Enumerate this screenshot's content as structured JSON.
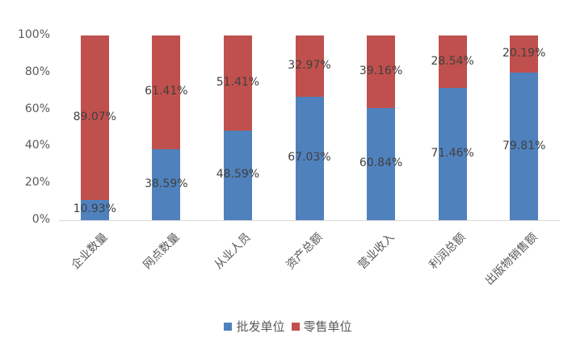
{
  "chart_data": {
    "type": "bar",
    "stacked": true,
    "percent_stacked": true,
    "title": "",
    "xlabel": "",
    "ylabel": "",
    "ylim": [
      0,
      100
    ],
    "y_ticks": [
      "0%",
      "20%",
      "40%",
      "60%",
      "80%",
      "100%"
    ],
    "grid": false,
    "legend_position": "bottom",
    "categories": [
      "企业数量",
      "网点数量",
      "从业人员",
      "资产总额",
      "营业收入",
      "利润总额",
      "出版物销售额"
    ],
    "series": [
      {
        "name": "批发单位",
        "color": "#4f81bd",
        "values": [
          10.93,
          38.59,
          48.59,
          67.03,
          60.84,
          71.46,
          79.81
        ],
        "labels": [
          "10.93%",
          "38.59%",
          "48.59%",
          "67.03%",
          "60.84%",
          "71.46%",
          "79.81%"
        ]
      },
      {
        "name": "零售单位",
        "color": "#c0504d",
        "values": [
          89.07,
          61.41,
          51.41,
          32.97,
          39.16,
          28.54,
          20.19
        ],
        "labels": [
          "89.07%",
          "61.41%",
          "51.41%",
          "32.97%",
          "39.16%",
          "28.54%",
          "20.19%"
        ]
      }
    ]
  }
}
